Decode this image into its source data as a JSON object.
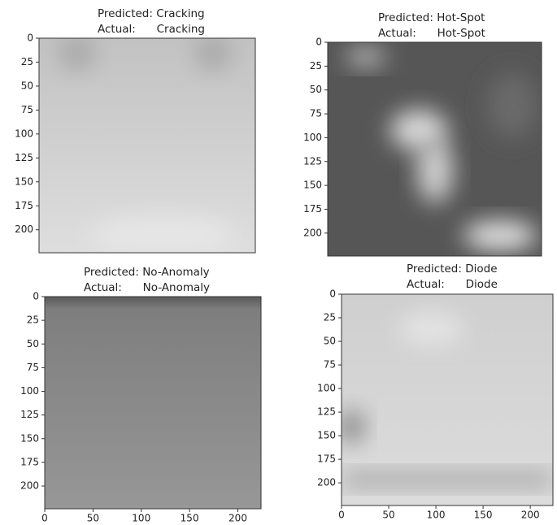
{
  "chart_data": [
    {
      "type": "image",
      "title": "Predicted: Cracking",
      "subtitle": "Actual:      Cracking",
      "ylim": [
        0,
        224
      ],
      "yticks": [
        0,
        25,
        50,
        75,
        100,
        125,
        150,
        175,
        200
      ]
    },
    {
      "type": "image",
      "title": "Predicted: Hot-Spot",
      "subtitle": "Actual:      Hot-Spot",
      "ylim": [
        0,
        224
      ],
      "yticks": [
        0,
        25,
        50,
        75,
        100,
        125,
        150,
        175,
        200
      ]
    },
    {
      "type": "image",
      "title": "Predicted: No-Anomaly",
      "subtitle": "Actual:      No-Anomaly",
      "ylim": [
        0,
        224
      ],
      "yticks": [
        0,
        25,
        50,
        75,
        100,
        125,
        150,
        175,
        200
      ],
      "xlim": [
        0,
        224
      ],
      "xticks": [
        0,
        50,
        100,
        150,
        200
      ]
    },
    {
      "type": "image",
      "title": "Predicted: Diode",
      "subtitle": "Actual:      Diode",
      "ylim": [
        0,
        224
      ],
      "yticks": [
        0,
        25,
        50,
        75,
        100,
        125,
        150,
        175,
        200
      ],
      "xlim": [
        0,
        224
      ],
      "xticks": [
        0,
        50,
        100,
        150,
        200
      ]
    }
  ]
}
